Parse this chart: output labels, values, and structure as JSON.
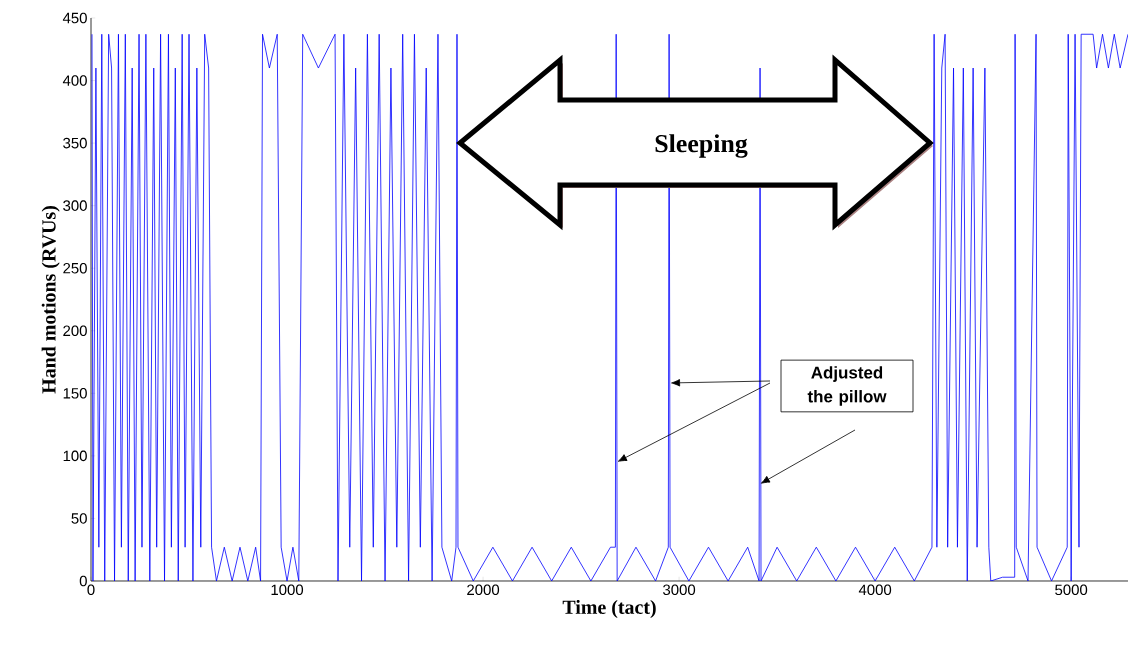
{
  "chart_data": {
    "type": "line",
    "xlabel": "Time (tact)",
    "ylabel": "Hand motions (RVUs)",
    "color": "#0000ff",
    "x": [
      5,
      10,
      25,
      40,
      55,
      70,
      90,
      105,
      120,
      140,
      155,
      175,
      190,
      210,
      225,
      245,
      260,
      280,
      300,
      320,
      335,
      355,
      375,
      395,
      410,
      430,
      445,
      465,
      480,
      500,
      520,
      540,
      560,
      580,
      600,
      615,
      640,
      680,
      720,
      760,
      800,
      840,
      865,
      875,
      910,
      950,
      970,
      1000,
      1030,
      1060,
      1080,
      1160,
      1245,
      1260,
      1290,
      1320,
      1350,
      1380,
      1410,
      1440,
      1470,
      1500,
      1530,
      1560,
      1590,
      1620,
      1650,
      1680,
      1710,
      1740,
      1770,
      1790,
      1840,
      1862,
      1867,
      1872,
      1950,
      2050,
      2150,
      2250,
      2350,
      2450,
      2550,
      2650,
      2675,
      2679,
      2684,
      2780,
      2880,
      2945,
      2949,
      2954,
      3050,
      3150,
      3250,
      3350,
      3408,
      3413,
      3418,
      3500,
      3600,
      3700,
      3800,
      3900,
      4000,
      4100,
      4200,
      4290,
      4301,
      4315,
      4340,
      4357,
      4370,
      4400,
      4420,
      4450,
      4470,
      4500,
      4520,
      4560,
      4580,
      4590,
      4650,
      4712,
      4714,
      4720,
      4780,
      4821,
      4826,
      4900,
      4980,
      4985,
      5000,
      5020,
      5040,
      5051,
      5112,
      5130,
      5160,
      5190,
      5220,
      5250,
      5290
    ],
    "values": [
      437,
      0,
      410,
      27,
      437,
      0,
      437,
      410,
      0,
      437,
      27,
      437,
      0,
      410,
      0,
      437,
      27,
      437,
      0,
      410,
      27,
      437,
      0,
      437,
      27,
      410,
      0,
      437,
      27,
      437,
      0,
      410,
      27,
      437,
      410,
      27,
      0,
      27,
      0,
      27,
      0,
      27,
      0,
      437,
      410,
      437,
      27,
      0,
      27,
      0,
      437,
      410,
      437,
      0,
      437,
      27,
      410,
      0,
      437,
      27,
      437,
      0,
      410,
      27,
      437,
      0,
      437,
      27,
      410,
      0,
      437,
      27,
      0,
      27,
      437,
      27,
      0,
      27,
      0,
      27,
      0,
      27,
      0,
      27,
      27,
      437,
      0,
      27,
      0,
      27,
      437,
      27,
      0,
      27,
      0,
      27,
      0,
      410,
      0,
      27,
      0,
      27,
      0,
      27,
      0,
      27,
      0,
      27,
      437,
      27,
      410,
      437,
      27,
      410,
      27,
      410,
      0,
      410,
      27,
      410,
      27,
      0,
      3,
      3,
      437,
      27,
      0,
      437,
      27,
      0,
      27,
      437,
      0,
      437,
      27,
      437,
      437,
      410,
      437,
      410,
      437,
      410,
      437
    ],
    "xlim": [
      0,
      5290
    ],
    "ylim": [
      0,
      450
    ],
    "xticks": [
      0,
      1000,
      2000,
      3000,
      4000,
      5000
    ],
    "yticks": [
      0,
      50,
      100,
      150,
      200,
      250,
      300,
      350,
      400,
      450
    ],
    "annotations": [
      "Sleeping",
      "Adjusted the pillow"
    ]
  }
}
